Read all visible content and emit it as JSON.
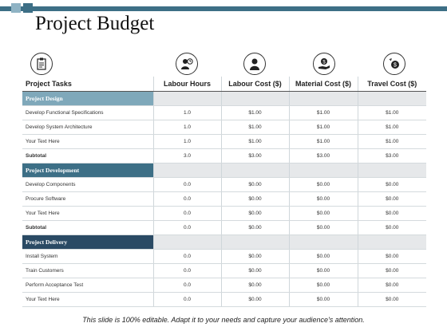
{
  "title": "Project Budget",
  "columns": [
    "Project Tasks",
    "Labour Hours",
    "Labour Cost ($)",
    "Material Cost ($)",
    "Travel Cost ($)"
  ],
  "icons": [
    "clipboard-icon",
    "clock-person-icon",
    "person-icon",
    "hand-money-icon",
    "money-coin-icon"
  ],
  "sections": [
    {
      "name": "Project Design",
      "rows": [
        [
          "Develop Functional Specifications",
          "1.0",
          "$1.00",
          "$1.00",
          "$1.00"
        ],
        [
          "Develop System Architecture",
          "1.0",
          "$1.00",
          "$1.00",
          "$1.00"
        ],
        [
          "Your Text Here",
          "1.0",
          "$1.00",
          "$1.00",
          "$1.00"
        ]
      ],
      "subtotal": [
        "Subtotal",
        "3.0",
        "$3.00",
        "$3.00",
        "$3.00"
      ]
    },
    {
      "name": "Project Development",
      "rows": [
        [
          "Develop Components",
          "0.0",
          "$0.00",
          "$0.00",
          "$0.00"
        ],
        [
          "Procure Software",
          "0.0",
          "$0.00",
          "$0.00",
          "$0.00"
        ],
        [
          "Your Text Here",
          "0.0",
          "$0.00",
          "$0.00",
          "$0.00"
        ]
      ],
      "subtotal": [
        "Subtotal",
        "0.0",
        "$0.00",
        "$0.00",
        "$0.00"
      ]
    },
    {
      "name": "Project Delivery",
      "rows": [
        [
          "Install System",
          "0.0",
          "$0.00",
          "$0.00",
          "$0.00"
        ],
        [
          "Train Customers",
          "0.0",
          "$0.00",
          "$0.00",
          "$0.00"
        ],
        [
          "Perform Acceptance Test",
          "0.0",
          "$0.00",
          "$0.00",
          "$0.00"
        ],
        [
          "Your Text Here",
          "0.0",
          "$0.00",
          "$0.00",
          "$0.00"
        ]
      ]
    }
  ],
  "footer": "This slide is 100% editable. Adapt it to your needs and capture your audience's attention."
}
